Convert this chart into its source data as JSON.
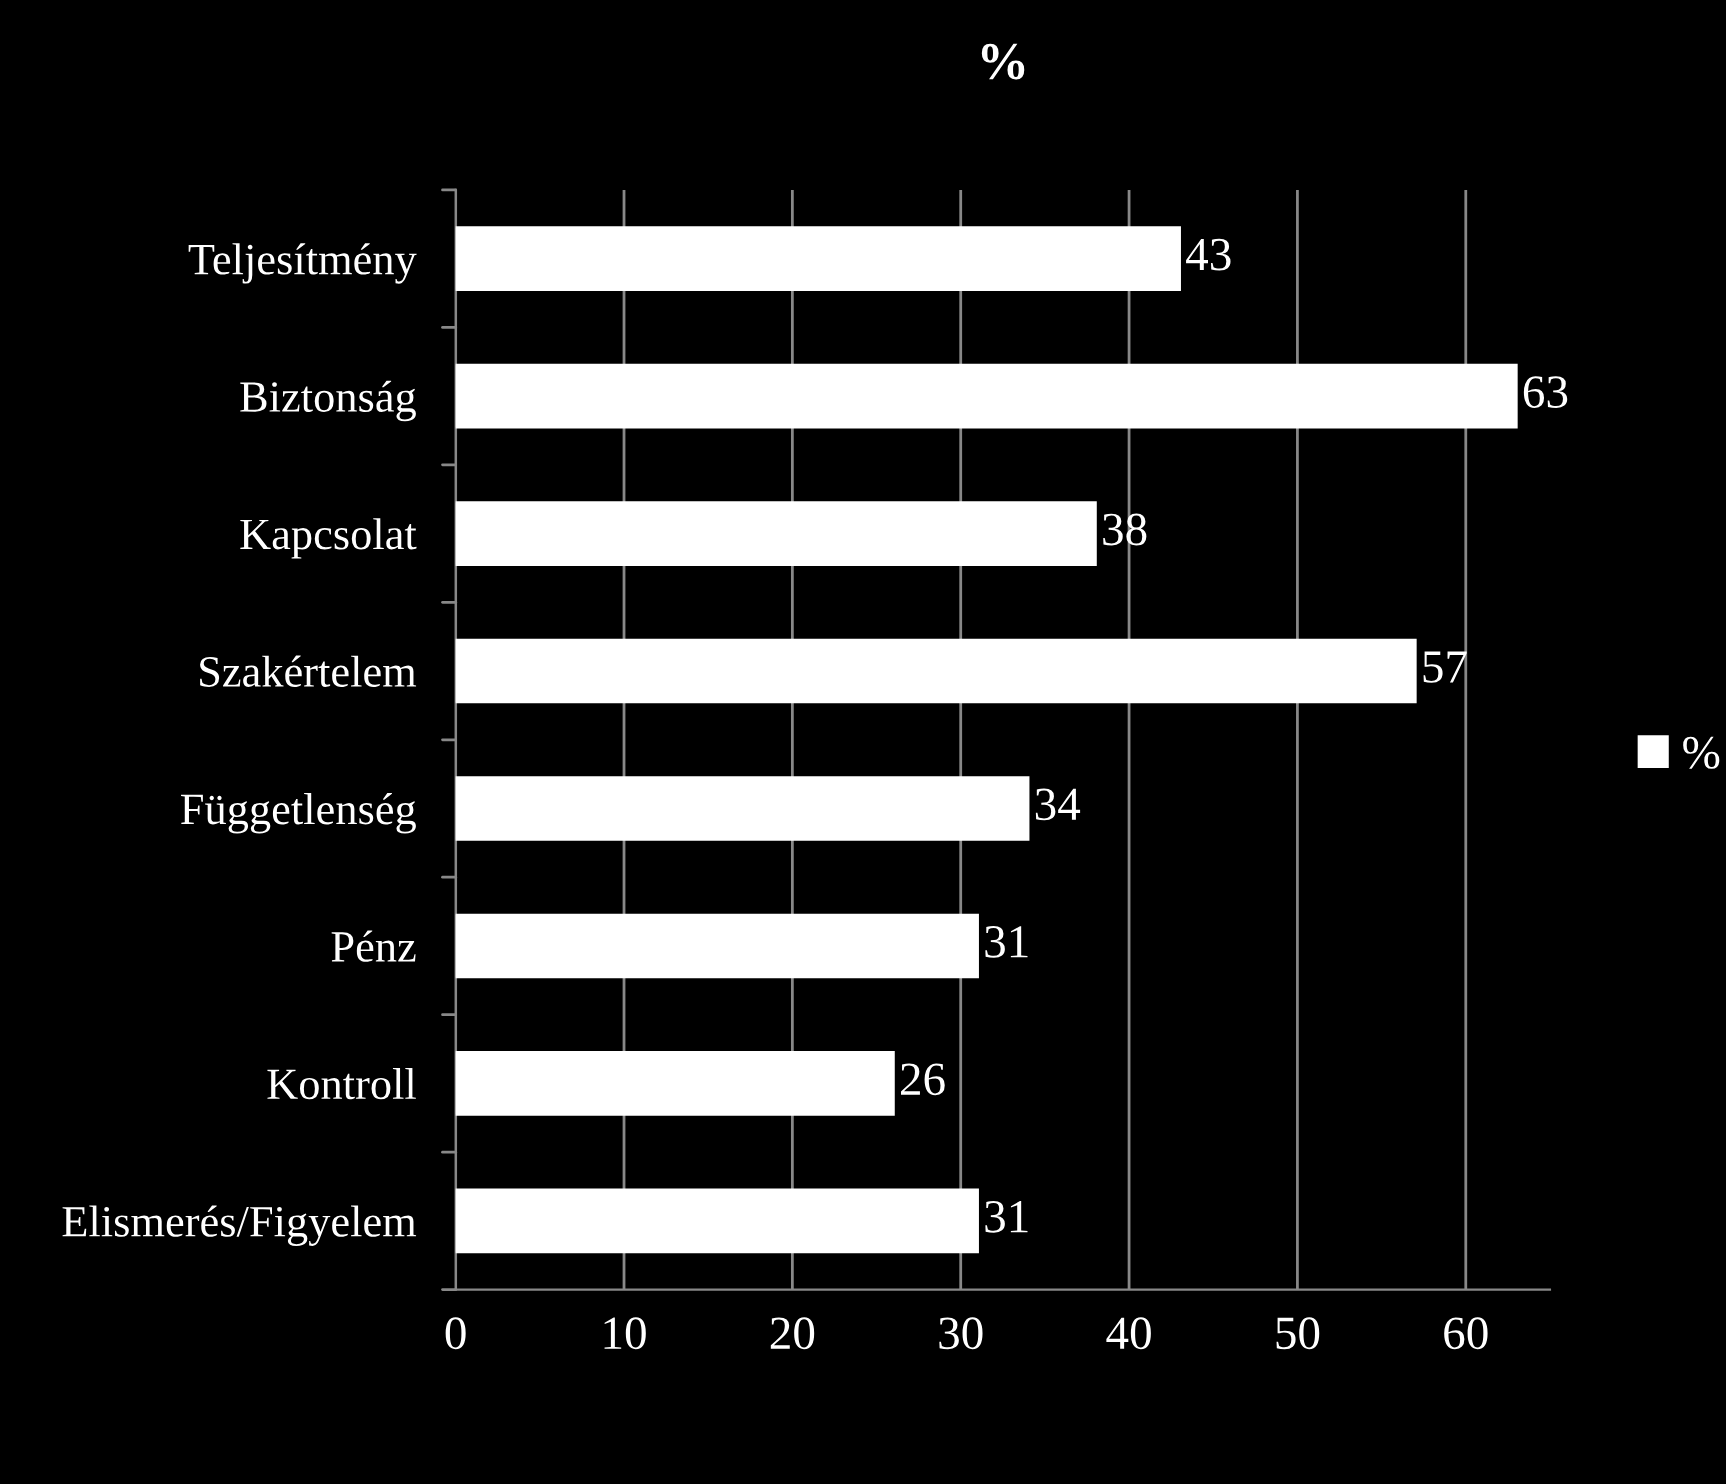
{
  "chart_data": {
    "type": "bar",
    "orientation": "horizontal",
    "title": "%",
    "categories": [
      "Teljesítmény",
      "Biztonság",
      "Kapcsolat",
      "Szakértelem",
      "Függetlenség",
      "Pénz",
      "Kontroll",
      "Elismerés/Figyelem"
    ],
    "series": [
      {
        "name": "%",
        "color": "#ffffff",
        "values": [
          43,
          63,
          38,
          57,
          34,
          31,
          26,
          31
        ]
      }
    ],
    "xlim": [
      0,
      65
    ],
    "xticks": [
      0,
      10,
      20,
      30,
      40,
      50,
      60
    ],
    "grid": "x",
    "legend": "right",
    "data_labels": true
  }
}
